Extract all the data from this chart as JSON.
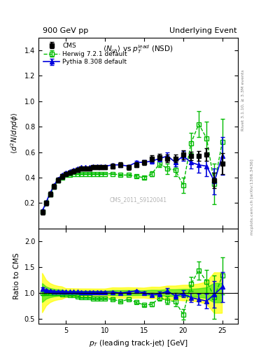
{
  "title_left": "900 GeV pp",
  "title_right": "Underlying Event",
  "plot_title": "$\\langle N_{ch}\\rangle$ vs $p_T^{lead}$ (NSD)",
  "ylabel_main": "$\\langle d^2 N/d\\eta d\\phi \\rangle$",
  "ylabel_ratio": "Ratio to CMS",
  "xlabel": "$p_T$ (leading track-jet) [GeV]",
  "right_label_top": "Rivet 3.1.10, ≥ 3.3M events",
  "right_label_bottom": "mcplots.cern.ch [arXiv:1306.3436]",
  "watermark": "CMS_2011_S9120041",
  "ylim_main": [
    0.0,
    1.5
  ],
  "ylim_ratio": [
    0.4,
    2.25
  ],
  "yticks_main": [
    0.2,
    0.4,
    0.6,
    0.8,
    1.0,
    1.2,
    1.4
  ],
  "yticks_ratio": [
    0.5,
    1.0,
    1.5,
    2.0
  ],
  "cms_x": [
    2.0,
    2.5,
    3.0,
    3.5,
    4.0,
    4.5,
    5.0,
    5.5,
    6.0,
    6.5,
    7.0,
    7.5,
    8.0,
    8.5,
    9.0,
    9.5,
    10.0,
    11.0,
    12.0,
    13.0,
    14.0,
    15.0,
    16.0,
    17.0,
    18.0,
    19.0,
    20.0,
    21.0,
    22.0,
    23.0,
    24.0,
    25.0
  ],
  "cms_y": [
    0.13,
    0.2,
    0.27,
    0.33,
    0.38,
    0.41,
    0.43,
    0.44,
    0.45,
    0.46,
    0.47,
    0.47,
    0.47,
    0.48,
    0.48,
    0.48,
    0.48,
    0.49,
    0.5,
    0.48,
    0.5,
    0.52,
    0.55,
    0.56,
    0.55,
    0.55,
    0.58,
    0.57,
    0.57,
    0.58,
    0.38,
    0.51
  ],
  "cms_ey": [
    0.02,
    0.02,
    0.02,
    0.02,
    0.02,
    0.02,
    0.015,
    0.015,
    0.015,
    0.015,
    0.015,
    0.015,
    0.015,
    0.015,
    0.015,
    0.015,
    0.015,
    0.02,
    0.02,
    0.02,
    0.02,
    0.02,
    0.025,
    0.025,
    0.03,
    0.03,
    0.035,
    0.035,
    0.04,
    0.05,
    0.06,
    0.08
  ],
  "herwig_x": [
    2.0,
    2.5,
    3.0,
    3.5,
    4.0,
    4.5,
    5.0,
    5.5,
    6.0,
    6.5,
    7.0,
    7.5,
    8.0,
    8.5,
    9.0,
    9.5,
    10.0,
    11.0,
    12.0,
    13.0,
    14.0,
    15.0,
    16.0,
    17.0,
    18.0,
    19.0,
    20.0,
    21.0,
    22.0,
    23.0,
    24.0,
    25.0
  ],
  "herwig_y": [
    0.13,
    0.2,
    0.27,
    0.33,
    0.38,
    0.4,
    0.42,
    0.42,
    0.43,
    0.43,
    0.43,
    0.43,
    0.43,
    0.43,
    0.43,
    0.43,
    0.43,
    0.43,
    0.42,
    0.42,
    0.41,
    0.4,
    0.43,
    0.51,
    0.47,
    0.46,
    0.34,
    0.67,
    0.82,
    0.71,
    0.35,
    0.68
  ],
  "herwig_ey": [
    0.005,
    0.005,
    0.005,
    0.005,
    0.005,
    0.005,
    0.005,
    0.005,
    0.005,
    0.005,
    0.005,
    0.005,
    0.005,
    0.005,
    0.005,
    0.005,
    0.005,
    0.005,
    0.005,
    0.005,
    0.01,
    0.01,
    0.02,
    0.03,
    0.04,
    0.05,
    0.06,
    0.08,
    0.1,
    0.13,
    0.16,
    0.18
  ],
  "pythia_x": [
    2.0,
    2.5,
    3.0,
    3.5,
    4.0,
    4.5,
    5.0,
    5.5,
    6.0,
    6.5,
    7.0,
    7.5,
    8.0,
    8.5,
    9.0,
    9.5,
    10.0,
    11.0,
    12.0,
    13.0,
    14.0,
    15.0,
    16.0,
    17.0,
    18.0,
    19.0,
    20.0,
    21.0,
    22.0,
    23.0,
    24.0,
    25.0
  ],
  "pythia_y": [
    0.14,
    0.21,
    0.28,
    0.34,
    0.39,
    0.42,
    0.44,
    0.45,
    0.46,
    0.47,
    0.48,
    0.48,
    0.48,
    0.49,
    0.49,
    0.49,
    0.49,
    0.5,
    0.5,
    0.49,
    0.52,
    0.52,
    0.53,
    0.55,
    0.57,
    0.52,
    0.57,
    0.52,
    0.5,
    0.49,
    0.37,
    0.57
  ],
  "pythia_ey": [
    0.005,
    0.005,
    0.005,
    0.005,
    0.005,
    0.005,
    0.005,
    0.005,
    0.005,
    0.005,
    0.005,
    0.005,
    0.005,
    0.005,
    0.005,
    0.005,
    0.005,
    0.005,
    0.005,
    0.005,
    0.01,
    0.015,
    0.02,
    0.025,
    0.03,
    0.03,
    0.04,
    0.05,
    0.06,
    0.08,
    0.1,
    0.15
  ],
  "cms_color": "#000000",
  "herwig_color": "#00bb00",
  "pythia_color": "#0000dd",
  "band_yellow": "#ffff00",
  "band_green": "#00dd00"
}
